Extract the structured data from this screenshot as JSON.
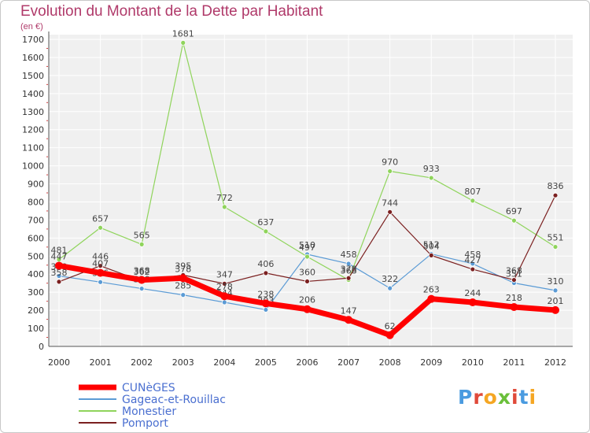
{
  "header": {
    "title": "Evolution du Montant de la Dette par Habitant",
    "subtitle": "(en €)"
  },
  "logo": {
    "letters": [
      "P",
      "r",
      "o",
      "x",
      "i",
      "t",
      "i"
    ],
    "colors": [
      "#4a9be0",
      "#e04a3a",
      "#f5a623",
      "#6abf3a",
      "#e04a3a",
      "#4a9be0",
      "#f5a623"
    ]
  },
  "chart_data": {
    "type": "line",
    "x": [
      "2000",
      "2001",
      "2002",
      "2003",
      "2004",
      "2005",
      "2006",
      "2007",
      "2008",
      "2009",
      "2010",
      "2011",
      "2012"
    ],
    "ylim": [
      0,
      1700
    ],
    "yticks": [
      0,
      100,
      200,
      300,
      400,
      500,
      600,
      700,
      800,
      900,
      1000,
      1100,
      1200,
      1300,
      1400,
      1500,
      1600,
      1700
    ],
    "grid": true,
    "legend_position": "bottom-left",
    "series": [
      {
        "name": "CUNèGES",
        "color": "#ff0000",
        "values": [
          447,
          407,
          368,
          378,
          278,
          238,
          206,
          147,
          62,
          263,
          244,
          218,
          201
        ]
      },
      {
        "name": "Gageac-et-Rouillac",
        "color": "#5b9bd5",
        "values": [
          390,
          356,
          320,
          285,
          244,
          203,
          510,
          458,
          322,
          512,
          458,
          351,
          310
        ]
      },
      {
        "name": "Monestier",
        "color": "#8fd45b",
        "values": [
          481,
          657,
          565,
          1681,
          772,
          637,
          497,
          368,
          970,
          933,
          807,
          697,
          551
        ]
      },
      {
        "name": "Pomport",
        "color": "#7b2020",
        "values": [
          358,
          446,
          362,
          395,
          347,
          406,
          360,
          378,
          744,
          504,
          427,
          368,
          836
        ]
      }
    ]
  }
}
